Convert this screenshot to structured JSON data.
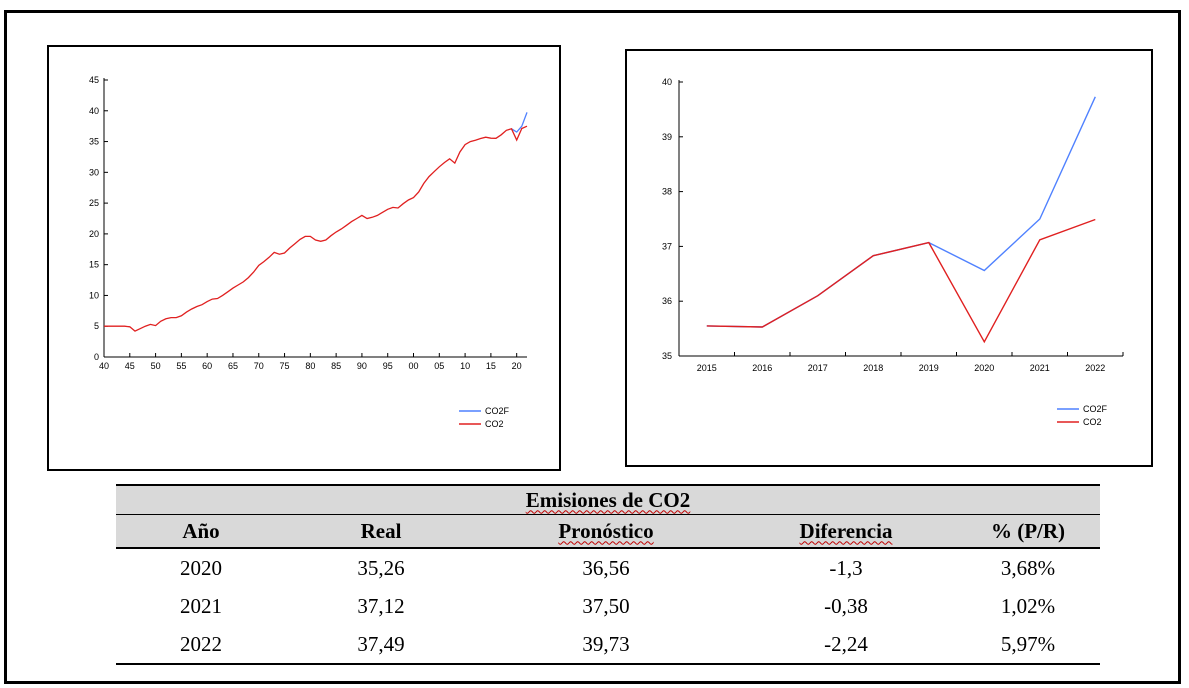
{
  "colors": {
    "co2f": "#4f81ff",
    "co2": "#e02020"
  },
  "charts": {
    "left": {
      "yticks": [
        "0",
        "5",
        "10",
        "15",
        "20",
        "25",
        "30",
        "35",
        "40",
        "45"
      ],
      "xticks": [
        "40",
        "45",
        "50",
        "55",
        "60",
        "65",
        "70",
        "75",
        "80",
        "85",
        "90",
        "95",
        "00",
        "05",
        "10",
        "15",
        "20"
      ]
    },
    "right": {
      "yticks": [
        "35",
        "36",
        "37",
        "38",
        "39",
        "40"
      ],
      "xticks": [
        "2015",
        "2016",
        "2017",
        "2018",
        "2019",
        "2020",
        "2021",
        "2022"
      ]
    },
    "legend": {
      "co2f": "CO2F",
      "co2": "CO2"
    }
  },
  "chart_data": [
    {
      "type": "line",
      "xlim": [
        1940,
        2022
      ],
      "ylim": [
        0,
        45
      ],
      "x": [
        1940,
        1941,
        1942,
        1943,
        1944,
        1945,
        1946,
        1947,
        1948,
        1949,
        1950,
        1951,
        1952,
        1953,
        1954,
        1955,
        1956,
        1957,
        1958,
        1959,
        1960,
        1961,
        1962,
        1963,
        1964,
        1965,
        1966,
        1967,
        1968,
        1969,
        1970,
        1971,
        1972,
        1973,
        1974,
        1975,
        1976,
        1977,
        1978,
        1979,
        1980,
        1981,
        1982,
        1983,
        1984,
        1985,
        1986,
        1987,
        1988,
        1989,
        1990,
        1991,
        1992,
        1993,
        1994,
        1995,
        1996,
        1997,
        1998,
        1999,
        2000,
        2001,
        2002,
        2003,
        2004,
        2005,
        2006,
        2007,
        2008,
        2009,
        2010,
        2011,
        2012,
        2013,
        2014,
        2015,
        2016,
        2017,
        2018,
        2019,
        2020,
        2021,
        2022
      ],
      "series": [
        {
          "name": "CO2",
          "values": [
            5.0,
            5.0,
            5.0,
            5.0,
            5.0,
            4.9,
            4.2,
            4.6,
            5.0,
            5.3,
            5.1,
            5.8,
            6.2,
            6.4,
            6.4,
            6.7,
            7.3,
            7.8,
            8.2,
            8.5,
            9.0,
            9.4,
            9.5,
            10.0,
            10.6,
            11.2,
            11.7,
            12.2,
            12.9,
            13.8,
            14.9,
            15.5,
            16.2,
            17.0,
            16.7,
            16.9,
            17.7,
            18.4,
            19.1,
            19.6,
            19.6,
            19.0,
            18.8,
            19.0,
            19.7,
            20.3,
            20.8,
            21.4,
            22.0,
            22.5,
            23.0,
            22.5,
            22.7,
            23.0,
            23.5,
            24.0,
            24.3,
            24.2,
            24.9,
            25.5,
            25.9,
            26.8,
            28.2,
            29.3,
            30.1,
            30.9,
            31.6,
            32.2,
            31.5,
            33.3,
            34.5,
            35.0,
            35.2,
            35.5,
            35.7,
            35.55,
            35.53,
            36.1,
            36.83,
            37.07,
            35.26,
            37.12,
            37.49
          ]
        },
        {
          "name": "CO2F",
          "values": [
            null,
            null,
            null,
            null,
            null,
            null,
            null,
            null,
            null,
            null,
            null,
            null,
            null,
            null,
            null,
            null,
            null,
            null,
            null,
            null,
            null,
            null,
            null,
            null,
            null,
            null,
            null,
            null,
            null,
            null,
            null,
            null,
            null,
            null,
            null,
            null,
            null,
            null,
            null,
            null,
            null,
            null,
            null,
            null,
            null,
            null,
            null,
            null,
            null,
            null,
            null,
            null,
            null,
            null,
            null,
            null,
            null,
            null,
            null,
            null,
            null,
            null,
            null,
            null,
            null,
            null,
            null,
            null,
            null,
            null,
            null,
            null,
            null,
            null,
            null,
            null,
            null,
            null,
            null,
            37.07,
            36.56,
            37.5,
            39.73
          ]
        }
      ]
    },
    {
      "type": "line",
      "categories": [
        "2015",
        "2016",
        "2017",
        "2018",
        "2019",
        "2020",
        "2021",
        "2022"
      ],
      "ylim": [
        35,
        40
      ],
      "series": [
        {
          "name": "CO2F",
          "values": [
            35.55,
            35.53,
            36.1,
            36.83,
            37.07,
            36.56,
            37.5,
            39.73
          ]
        },
        {
          "name": "CO2",
          "values": [
            35.55,
            35.53,
            36.1,
            36.83,
            37.07,
            35.26,
            37.12,
            37.49
          ]
        }
      ]
    }
  ],
  "table": {
    "title": "Emisiones de CO2",
    "headers": [
      "Año",
      "Real",
      "Pronóstico",
      "Diferencia",
      "% (P/R)"
    ],
    "rows": [
      [
        "2020",
        "35,26",
        "36,56",
        "-1,3",
        "3,68%"
      ],
      [
        "2021",
        "37,12",
        "37,50",
        "-0,38",
        "1,02%"
      ],
      [
        "2022",
        "37,49",
        "39,73",
        "-2,24",
        "5,97%"
      ]
    ]
  }
}
